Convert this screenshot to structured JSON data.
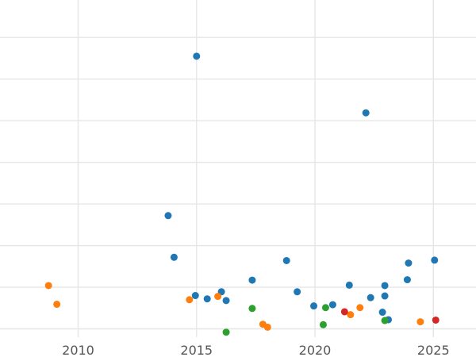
{
  "chart_data": {
    "type": "scatter",
    "title": "",
    "xlabel": "",
    "ylabel": "",
    "xlim": [
      2006.7,
      2026.8
    ],
    "ylim": [
      -0.2,
      7.9
    ],
    "grid": true,
    "legend": "none",
    "x_ticks": [
      {
        "value": 2010,
        "label": "2010"
      },
      {
        "value": 2015,
        "label": "2015"
      },
      {
        "value": 2020,
        "label": "2020"
      },
      {
        "value": 2025,
        "label": "2025"
      }
    ],
    "y_gridlines": [
      0,
      1,
      2,
      3,
      4,
      5,
      6,
      7
    ],
    "series": [
      {
        "color": "#1f77b4",
        "points": [
          {
            "x": 2015.0,
            "y": 6.55
          },
          {
            "x": 2022.15,
            "y": 5.19
          },
          {
            "x": 2013.8,
            "y": 2.72
          },
          {
            "x": 2014.05,
            "y": 1.72
          },
          {
            "x": 2018.8,
            "y": 1.64
          },
          {
            "x": 2025.05,
            "y": 1.65
          },
          {
            "x": 2023.95,
            "y": 1.58
          },
          {
            "x": 2017.35,
            "y": 1.17
          },
          {
            "x": 2023.9,
            "y": 1.18
          },
          {
            "x": 2021.45,
            "y": 1.05
          },
          {
            "x": 2022.95,
            "y": 1.04
          },
          {
            "x": 2016.05,
            "y": 0.89
          },
          {
            "x": 2019.25,
            "y": 0.89
          },
          {
            "x": 2014.95,
            "y": 0.8
          },
          {
            "x": 2022.95,
            "y": 0.79
          },
          {
            "x": 2015.45,
            "y": 0.72
          },
          {
            "x": 2016.25,
            "y": 0.68
          },
          {
            "x": 2022.35,
            "y": 0.75
          },
          {
            "x": 2019.95,
            "y": 0.55
          },
          {
            "x": 2020.75,
            "y": 0.58
          },
          {
            "x": 2022.85,
            "y": 0.4
          },
          {
            "x": 2023.1,
            "y": 0.22
          }
        ]
      },
      {
        "color": "#ff7f0e",
        "points": [
          {
            "x": 2008.75,
            "y": 1.04
          },
          {
            "x": 2009.1,
            "y": 0.59
          },
          {
            "x": 2014.7,
            "y": 0.7
          },
          {
            "x": 2015.9,
            "y": 0.78
          },
          {
            "x": 2021.9,
            "y": 0.51
          },
          {
            "x": 2021.5,
            "y": 0.34
          },
          {
            "x": 2017.8,
            "y": 0.11
          },
          {
            "x": 2018.0,
            "y": 0.04
          },
          {
            "x": 2024.45,
            "y": 0.17
          }
        ]
      },
      {
        "color": "#2ca02c",
        "points": [
          {
            "x": 2017.35,
            "y": 0.49
          },
          {
            "x": 2020.45,
            "y": 0.51
          },
          {
            "x": 2022.95,
            "y": 0.2
          },
          {
            "x": 2020.35,
            "y": 0.1
          },
          {
            "x": 2016.25,
            "y": -0.08
          }
        ]
      },
      {
        "color": "#d62728",
        "points": [
          {
            "x": 2021.25,
            "y": 0.41
          },
          {
            "x": 2025.1,
            "y": 0.21
          }
        ]
      }
    ]
  }
}
